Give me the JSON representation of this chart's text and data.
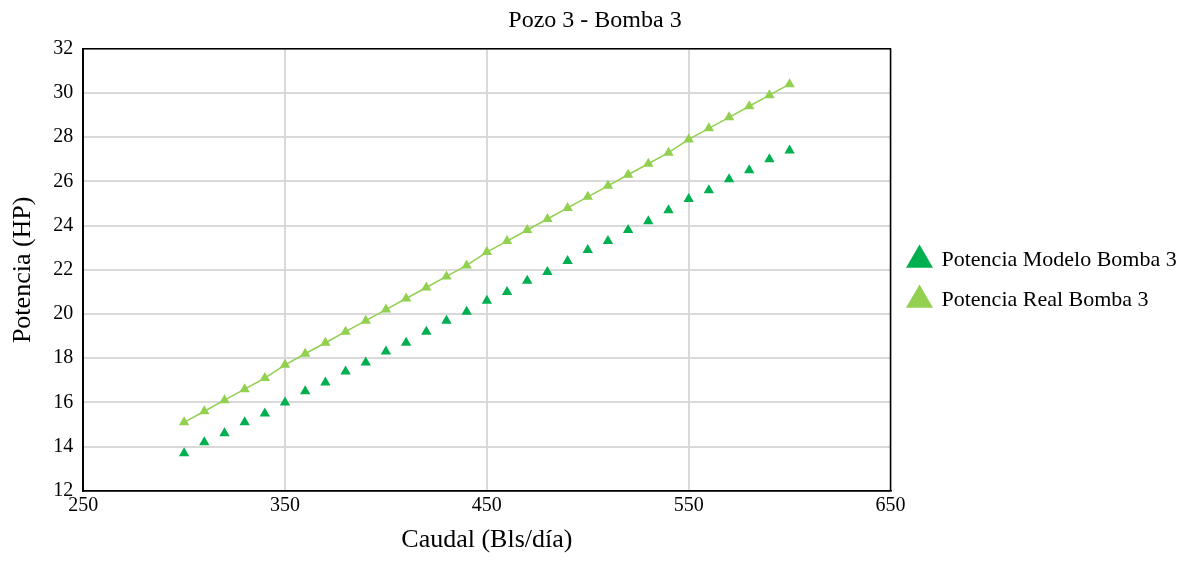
{
  "chart_data": {
    "type": "scatter",
    "title": "Pozo 3 - Bomba 3",
    "xlabel": "Caudal (Bls/día)",
    "ylabel": "Potencia (HP)",
    "x": [
      300,
      310,
      320,
      330,
      340,
      350,
      360,
      370,
      380,
      390,
      400,
      410,
      420,
      430,
      440,
      450,
      460,
      470,
      480,
      490,
      500,
      510,
      520,
      530,
      540,
      550,
      560,
      570,
      580,
      590,
      600
    ],
    "series": [
      {
        "name": "Potencia Modelo Bomba 3",
        "type": "scatter",
        "color": "#00b050",
        "values": [
          13.7,
          14.2,
          14.6,
          15.1,
          15.5,
          16.0,
          16.5,
          16.9,
          17.4,
          17.8,
          18.3,
          18.7,
          19.2,
          19.7,
          20.1,
          20.6,
          21.0,
          21.5,
          21.9,
          22.4,
          22.9,
          23.3,
          23.8,
          24.2,
          24.7,
          25.2,
          25.6,
          26.1,
          26.5,
          27.0,
          27.4
        ]
      },
      {
        "name": "Potencia Real Bomba 3",
        "type": "line",
        "color": "#92d050",
        "values": [
          15.1,
          15.6,
          16.1,
          16.6,
          17.1,
          17.7,
          18.2,
          18.7,
          19.2,
          19.7,
          20.2,
          20.7,
          21.2,
          21.7,
          22.2,
          22.8,
          23.3,
          23.8,
          24.3,
          24.8,
          25.3,
          25.8,
          26.3,
          26.8,
          27.3,
          27.9,
          28.4,
          28.9,
          29.4,
          29.9,
          30.4
        ]
      }
    ],
    "xlim": [
      250,
      650
    ],
    "xticks": [
      250,
      350,
      450,
      550,
      650
    ],
    "ylim": [
      12,
      32
    ],
    "yticks": [
      12,
      14,
      16,
      18,
      20,
      22,
      24,
      26,
      28,
      30,
      32
    ],
    "grid": true,
    "legend": "right",
    "marker": "triangle",
    "line_style": "solid"
  }
}
